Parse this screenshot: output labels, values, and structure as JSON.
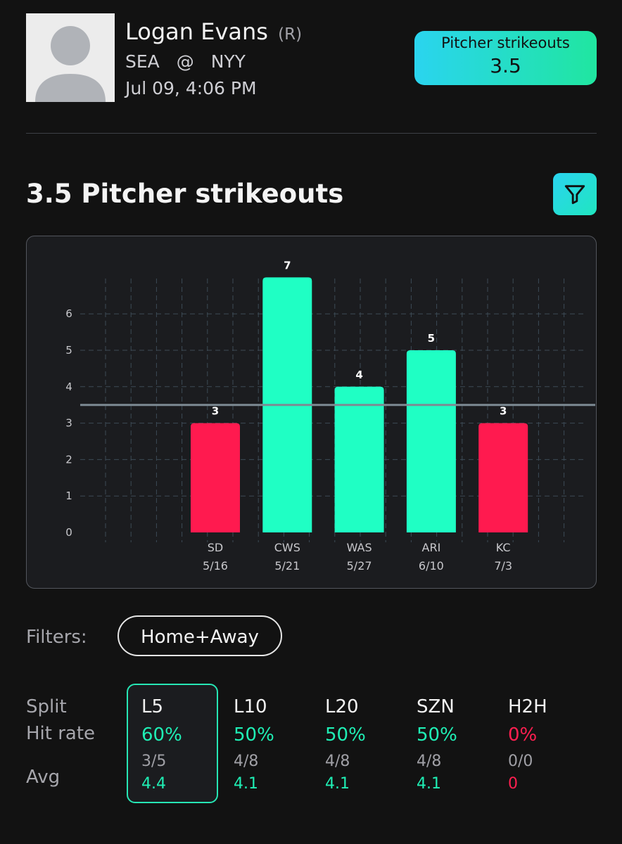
{
  "player": {
    "name": "Logan Evans",
    "hand": "(R)",
    "team": "SEA",
    "at": "@",
    "opponent": "NYY",
    "game_time": "Jul 09, 4:06 PM"
  },
  "prop_badge": {
    "label": "Pitcher strikeouts",
    "value": "3.5"
  },
  "section_title": "3.5 Pitcher strikeouts",
  "icons": {
    "avatar": "user-placeholder-icon",
    "filter": "funnel-icon"
  },
  "colors": {
    "over": "#1fffc4",
    "under": "#ff1a4f",
    "line": "#7d8a93",
    "accent": "#2ad4ef"
  },
  "chart_data": {
    "type": "bar",
    "categories": [
      "SD",
      "CWS",
      "WAS",
      "ARI",
      "KC"
    ],
    "dates": [
      "5/16",
      "5/21",
      "5/27",
      "6/10",
      "7/3"
    ],
    "values": [
      3,
      7,
      4,
      5,
      3
    ],
    "line": 3.5,
    "yticks": [
      0,
      1,
      2,
      3,
      4,
      5,
      6
    ],
    "ylim": [
      0,
      7
    ],
    "grid": true
  },
  "filters": {
    "label": "Filters:",
    "chip": "Home+Away"
  },
  "stats": {
    "row_labels": {
      "split": "Split",
      "hit_rate": "Hit rate",
      "avg": "Avg"
    },
    "splits": [
      {
        "name": "L5",
        "rate": "60%",
        "frac": "3/5",
        "avg": "4.4",
        "status": "good",
        "selected": true
      },
      {
        "name": "L10",
        "rate": "50%",
        "frac": "4/8",
        "avg": "4.1",
        "status": "good",
        "selected": false
      },
      {
        "name": "L20",
        "rate": "50%",
        "frac": "4/8",
        "avg": "4.1",
        "status": "good",
        "selected": false
      },
      {
        "name": "SZN",
        "rate": "50%",
        "frac": "4/8",
        "avg": "4.1",
        "status": "good",
        "selected": false
      },
      {
        "name": "H2H",
        "rate": "0%",
        "frac": "0/0",
        "avg": "0",
        "status": "bad",
        "selected": false
      }
    ]
  }
}
